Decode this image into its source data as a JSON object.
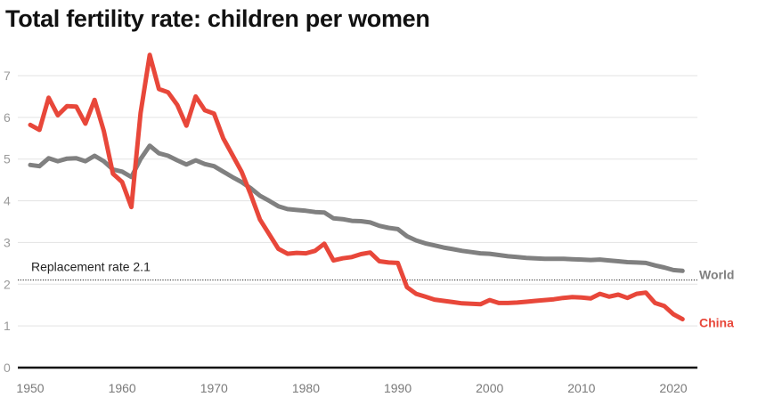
{
  "chart_data": {
    "type": "line",
    "title": "Total fertility rate: children per women",
    "xlabel": "",
    "ylabel": "",
    "xlim": [
      1949,
      2022
    ],
    "ylim": [
      0,
      7.4
    ],
    "grid": true,
    "x_ticks": [
      1950,
      1960,
      1970,
      1980,
      1990,
      2000,
      2010,
      2020
    ],
    "y_ticks": [
      0,
      1,
      2,
      3,
      4,
      5,
      6,
      7
    ],
    "legend": "inline-right",
    "annotations": [
      {
        "type": "hline",
        "y": 2.1,
        "style": "dotted",
        "label": "Replacement rate 2.1"
      }
    ],
    "x": [
      1950,
      1951,
      1952,
      1953,
      1954,
      1955,
      1956,
      1957,
      1958,
      1959,
      1960,
      1961,
      1962,
      1963,
      1964,
      1965,
      1966,
      1967,
      1968,
      1969,
      1970,
      1971,
      1972,
      1973,
      1974,
      1975,
      1976,
      1977,
      1978,
      1979,
      1980,
      1981,
      1982,
      1983,
      1984,
      1985,
      1986,
      1987,
      1988,
      1989,
      1990,
      1991,
      1992,
      1993,
      1994,
      1995,
      1996,
      1997,
      1998,
      1999,
      2000,
      2001,
      2002,
      2003,
      2004,
      2005,
      2006,
      2007,
      2008,
      2009,
      2010,
      2011,
      2012,
      2013,
      2014,
      2015,
      2016,
      2017,
      2018,
      2019,
      2020,
      2021
    ],
    "series": [
      {
        "name": "World",
        "color": "#808080",
        "values": [
          4.86,
          4.83,
          5.02,
          4.95,
          5.01,
          5.02,
          4.95,
          5.08,
          4.95,
          4.75,
          4.7,
          4.57,
          5.0,
          5.32,
          5.14,
          5.08,
          4.97,
          4.87,
          4.97,
          4.88,
          4.83,
          4.7,
          4.57,
          4.45,
          4.3,
          4.12,
          4.0,
          3.87,
          3.8,
          3.78,
          3.76,
          3.73,
          3.72,
          3.58,
          3.56,
          3.52,
          3.51,
          3.48,
          3.4,
          3.35,
          3.32,
          3.15,
          3.05,
          2.98,
          2.93,
          2.88,
          2.84,
          2.8,
          2.77,
          2.74,
          2.73,
          2.7,
          2.67,
          2.65,
          2.63,
          2.62,
          2.61,
          2.61,
          2.61,
          2.6,
          2.59,
          2.58,
          2.59,
          2.57,
          2.55,
          2.53,
          2.52,
          2.51,
          2.45,
          2.4,
          2.34,
          2.32
        ]
      },
      {
        "name": "China",
        "color": "#e8473a",
        "values": [
          5.82,
          5.7,
          6.47,
          6.05,
          6.27,
          6.26,
          5.85,
          6.42,
          5.68,
          4.65,
          4.45,
          3.85,
          6.1,
          7.5,
          6.68,
          6.6,
          6.3,
          5.8,
          6.5,
          6.17,
          6.09,
          5.5,
          5.1,
          4.7,
          4.15,
          3.55,
          3.2,
          2.85,
          2.73,
          2.75,
          2.74,
          2.8,
          2.97,
          2.57,
          2.62,
          2.65,
          2.72,
          2.76,
          2.55,
          2.52,
          2.51,
          1.93,
          1.77,
          1.7,
          1.63,
          1.6,
          1.57,
          1.54,
          1.53,
          1.52,
          1.62,
          1.55,
          1.55,
          1.56,
          1.58,
          1.6,
          1.62,
          1.64,
          1.67,
          1.69,
          1.68,
          1.66,
          1.77,
          1.7,
          1.75,
          1.67,
          1.77,
          1.8,
          1.55,
          1.48,
          1.28,
          1.16
        ]
      }
    ]
  }
}
